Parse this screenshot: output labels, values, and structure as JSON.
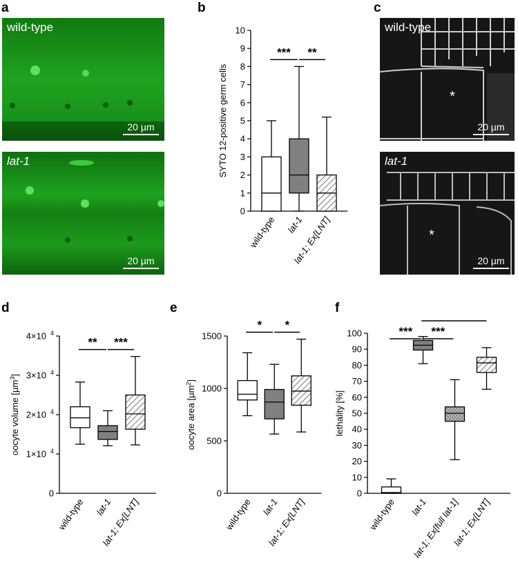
{
  "panels": {
    "a": {
      "letter": "a",
      "top_label": "wild-type",
      "bottom_label": "lat-1",
      "scale_text": "20 µm",
      "color": "#1fa81f"
    },
    "b": {
      "letter": "b"
    },
    "c": {
      "letter": "c",
      "top_label": "wild-type",
      "bottom_label": "lat-1",
      "scale_text": "20 µm",
      "asterisk": "*"
    },
    "d": {
      "letter": "d"
    },
    "e": {
      "letter": "e"
    },
    "f": {
      "letter": "f"
    }
  },
  "chart_data": [
    {
      "id": "b",
      "type": "box",
      "ylabel": "SYTO 12-positive germ cells",
      "ylim": [
        0,
        10
      ],
      "yticks": [
        "0",
        "1",
        "2",
        "3",
        "4",
        "5",
        "6",
        "7",
        "8",
        "9",
        "10"
      ],
      "categories": [
        "wild-type",
        "lat-1",
        "lat-1; Ex[LNT]"
      ],
      "boxes": [
        {
          "min": 0,
          "q1": 0,
          "median": 1,
          "q3": 3,
          "max": 5,
          "fill": "white"
        },
        {
          "min": 0,
          "q1": 1,
          "median": 2,
          "q3": 4,
          "max": 8,
          "fill": "gray"
        },
        {
          "min": 0,
          "q1": 0,
          "median": 1,
          "q3": 2,
          "max": 5.2,
          "fill": "hatch"
        }
      ],
      "significance": [
        {
          "from": 0,
          "to": 1,
          "label": "***"
        },
        {
          "from": 1,
          "to": 2,
          "label": "**"
        }
      ]
    },
    {
      "id": "d",
      "type": "box",
      "ylabel": "oocyte volume [µm3]",
      "ylim": [
        0,
        40000
      ],
      "yticks": [
        "0",
        "1×10",
        "2×10",
        "3×10",
        "4×10"
      ],
      "ytick_exponent": "4",
      "ylabel_main": "oocyte volume [µm",
      "ylabel_sup": "3",
      "ylabel_end": "]",
      "categories": [
        "wild-type",
        "lat-1",
        "lat-1; Ex[LNT]"
      ],
      "boxes": [
        {
          "min": 12500,
          "q1": 16700,
          "median": 19200,
          "q3": 22000,
          "max": 28300,
          "fill": "white"
        },
        {
          "min": 12100,
          "q1": 13700,
          "median": 15700,
          "q3": 17200,
          "max": 21000,
          "fill": "gray"
        },
        {
          "min": 12300,
          "q1": 16300,
          "median": 20200,
          "q3": 25000,
          "max": 34800,
          "fill": "hatch"
        }
      ],
      "significance": [
        {
          "from": 0,
          "to": 1,
          "label": "**"
        },
        {
          "from": 1,
          "to": 2,
          "label": "***"
        }
      ]
    },
    {
      "id": "e",
      "type": "box",
      "ylabel": "oocyte area [µm2]",
      "ylim": [
        0,
        1500
      ],
      "yticks": [
        "0",
        "500",
        "1000",
        "1500"
      ],
      "ylabel_main": "oocyte area [µm",
      "ylabel_sup": "2",
      "ylabel_end": "]",
      "categories": [
        "wild-type",
        "lat-1",
        "lat-1; Ex[LNT]"
      ],
      "boxes": [
        {
          "min": 740,
          "q1": 890,
          "median": 945,
          "q3": 1075,
          "max": 1340,
          "fill": "white"
        },
        {
          "min": 565,
          "q1": 710,
          "median": 870,
          "q3": 990,
          "max": 1230,
          "fill": "gray"
        },
        {
          "min": 585,
          "q1": 840,
          "median": 975,
          "q3": 1120,
          "max": 1470,
          "fill": "hatch"
        }
      ],
      "significance": [
        {
          "from": 0,
          "to": 1,
          "label": "*"
        },
        {
          "from": 1,
          "to": 2,
          "label": "*"
        }
      ]
    },
    {
      "id": "f",
      "type": "box",
      "ylabel": "lethality [%]",
      "ylim": [
        0,
        100
      ],
      "yticks": [
        "0",
        "10",
        "20",
        "30",
        "40",
        "50",
        "60",
        "70",
        "80",
        "90",
        "100"
      ],
      "categories": [
        "wild-type",
        "lat-1",
        "lat-1; Ex[full lat-1]",
        "lat-1; Ex[LNT]"
      ],
      "boxes": [
        {
          "min": 0,
          "q1": 0,
          "median": 0.5,
          "q3": 4,
          "max": 9,
          "fill": "white"
        },
        {
          "min": 81,
          "q1": 89.5,
          "median": 92.5,
          "q3": 95.5,
          "max": 98,
          "fill": "gray"
        },
        {
          "min": 21,
          "q1": 45,
          "median": 50,
          "q3": 54,
          "max": 71,
          "fill": "cross"
        },
        {
          "min": 65,
          "q1": 75.5,
          "median": 81.5,
          "q3": 85,
          "max": 91,
          "fill": "hatch"
        }
      ],
      "significance": [
        {
          "from": 0,
          "to": 1,
          "label": "***",
          "level": 0
        },
        {
          "from": 1,
          "to": 2,
          "label": "***",
          "level": 0
        },
        {
          "from": 1,
          "to": 3,
          "label": "***",
          "level": 1
        }
      ]
    }
  ]
}
